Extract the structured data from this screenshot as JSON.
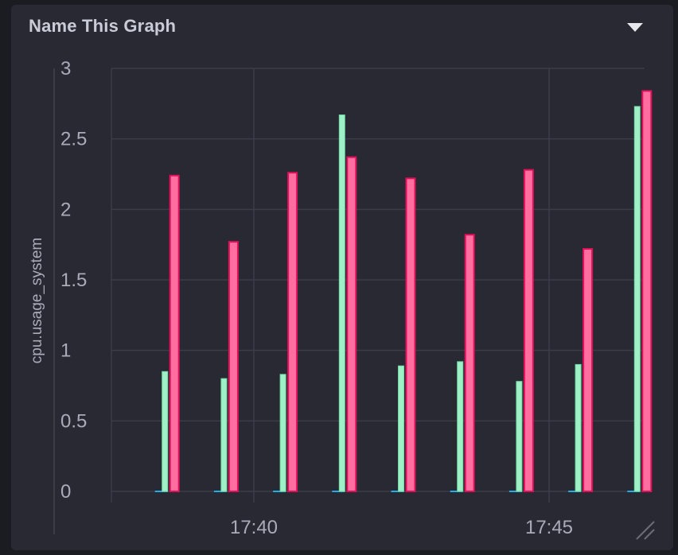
{
  "panel": {
    "title": "Name This Graph",
    "menu_icon": "caret-down-icon",
    "resize_icon": "resize-handle-icon"
  },
  "chart_data": {
    "type": "bar",
    "title": "Name This Graph",
    "ylabel": "cpu.usage_system",
    "xlabel": "",
    "ylim": [
      0,
      3
    ],
    "yticks": [
      "0",
      "0.5",
      "1",
      "1.5",
      "2",
      "2.5",
      "3"
    ],
    "xticks": [
      "17:40",
      "17:45"
    ],
    "grid": true,
    "x": [
      "17:38:30",
      "17:39:30",
      "17:40:30",
      "17:41:30",
      "17:42:30",
      "17:43:30",
      "17:44:30",
      "17:45:30",
      "17:46:30"
    ],
    "series": [
      {
        "color": "#22ade6",
        "values": [
          0,
          0,
          0,
          0,
          0,
          0,
          0,
          0,
          0
        ]
      },
      {
        "color": "#9ff0c6",
        "values": [
          0.85,
          0.8,
          0.83,
          2.67,
          0.89,
          0.92,
          0.78,
          0.9,
          2.73
        ]
      },
      {
        "color": "#ff6e9e",
        "values": [
          2.24,
          1.77,
          2.26,
          2.37,
          2.22,
          1.82,
          2.28,
          1.72,
          2.84
        ]
      }
    ]
  }
}
